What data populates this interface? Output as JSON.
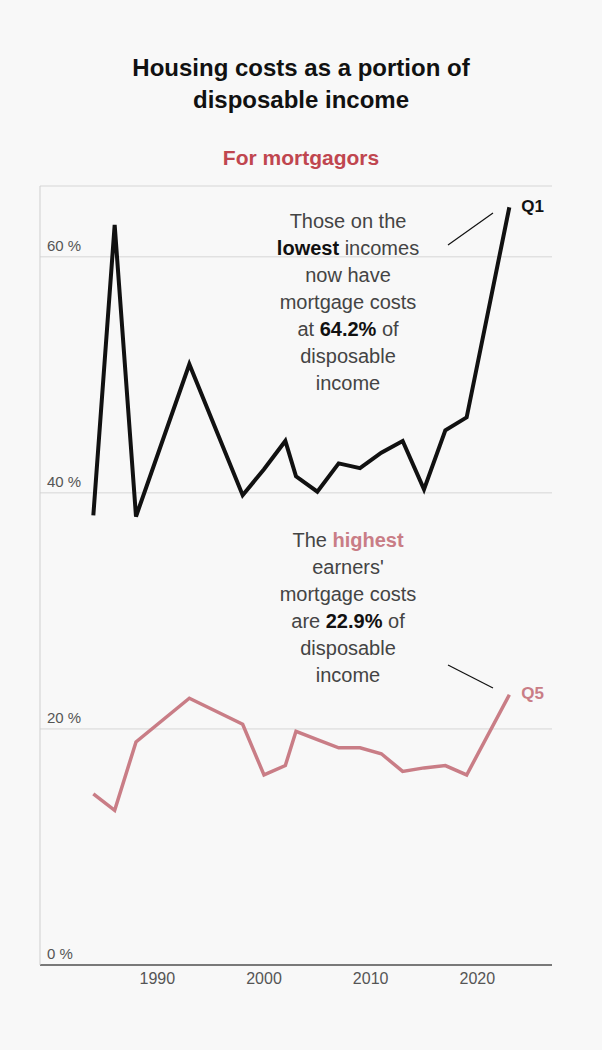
{
  "chart_data": {
    "type": "line",
    "title": "Housing costs as a portion of disposable income",
    "subtitle": "For mortgagors",
    "subtitle_color": "#c0464f",
    "x": [
      1984,
      1986,
      1988,
      1993,
      1998,
      2000,
      2002,
      2003,
      2005,
      2007,
      2009,
      2011,
      2013,
      2015,
      2017,
      2019,
      2023
    ],
    "series": [
      {
        "name": "Q1",
        "color": "#111111",
        "values": [
          38.1,
          62.7,
          38.0,
          50.9,
          39.8,
          42.0,
          44.4,
          41.4,
          40.1,
          42.5,
          42.1,
          43.4,
          44.4,
          40.3,
          45.3,
          46.4,
          64.2
        ]
      },
      {
        "name": "Q5",
        "color": "#c97d86",
        "values": [
          14.5,
          13.1,
          18.9,
          22.6,
          20.4,
          16.1,
          16.9,
          19.8,
          19.1,
          18.4,
          18.4,
          17.9,
          16.4,
          16.7,
          16.9,
          16.1,
          22.9
        ]
      }
    ],
    "xlim": [
      1979,
      2027
    ],
    "xticks": [
      1990,
      2000,
      2010,
      2020
    ],
    "ylim": [
      0,
      66
    ],
    "yticks": [
      {
        "value": 0,
        "label": "0 %"
      },
      {
        "value": 20,
        "label": "20 %"
      },
      {
        "value": 40,
        "label": "40 %"
      },
      {
        "value": 60,
        "label": "60 %"
      }
    ],
    "grid": true,
    "annotations": [
      {
        "lines": [
          "Those on the",
          "lowest incomes",
          "now have",
          "mortgage costs",
          "at 64.2% of",
          "disposable",
          "income"
        ],
        "emphasis": [
          {
            "text": "lowest",
            "color": "#111111"
          },
          {
            "text": "64.2%",
            "color": "#111111"
          }
        ]
      },
      {
        "lines": [
          "The highest",
          "earners'",
          "mortgage costs",
          "are 22.9% of",
          "disposable",
          "income"
        ],
        "emphasis": [
          {
            "text": "highest",
            "color": "#c97d86"
          },
          {
            "text": "22.9%",
            "color": "#111111"
          }
        ]
      }
    ]
  }
}
